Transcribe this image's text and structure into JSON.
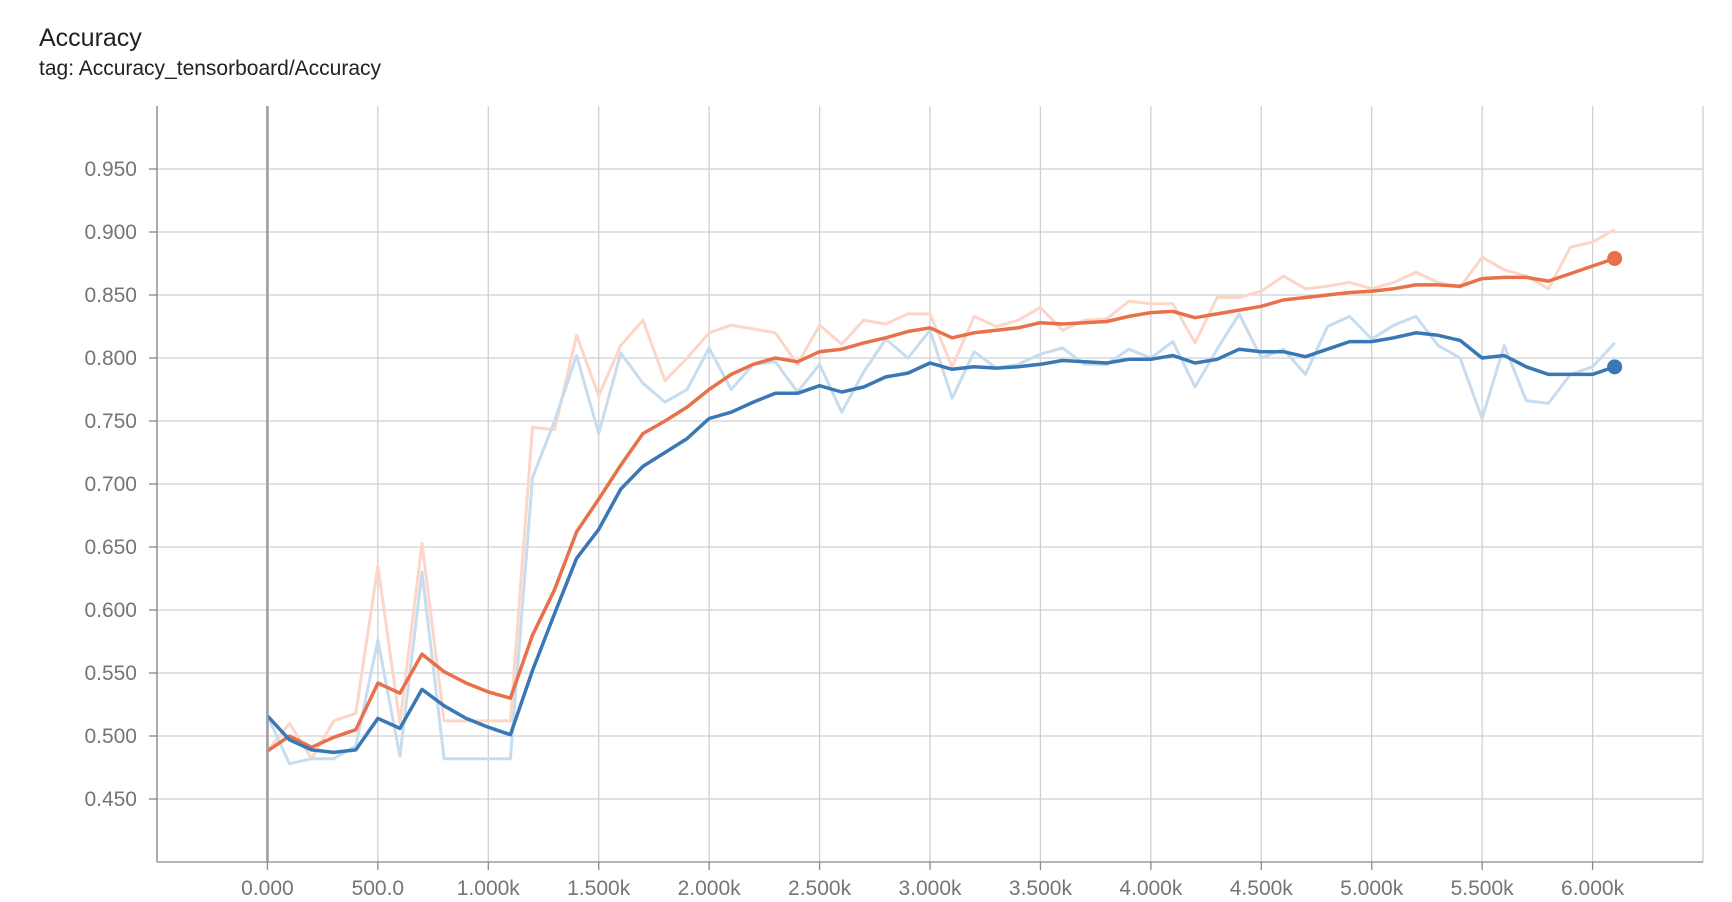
{
  "title": "Accuracy",
  "subtitle": "tag: Accuracy_tensorboard/Accuracy",
  "chart_data": {
    "type": "line",
    "title": "Accuracy",
    "subtitle": "tag: Accuracy_tensorboard/Accuracy",
    "xlabel": "",
    "ylabel": "",
    "xlim": [
      -500,
      6500
    ],
    "ylim": [
      0.4,
      1.0
    ],
    "grid": true,
    "x_ticks": [
      0,
      500,
      1000,
      1500,
      2000,
      2500,
      3000,
      3500,
      4000,
      4500,
      5000,
      5500,
      6000
    ],
    "x_tick_labels": [
      "0.000",
      "500.0",
      "1.000k",
      "1.500k",
      "2.000k",
      "2.500k",
      "3.000k",
      "3.500k",
      "4.000k",
      "4.500k",
      "5.000k",
      "5.500k",
      "6.000k"
    ],
    "y_ticks": [
      0.45,
      0.5,
      0.55,
      0.6,
      0.65,
      0.7,
      0.75,
      0.8,
      0.85,
      0.9,
      0.95
    ],
    "y_tick_labels": [
      "0.450",
      "0.500",
      "0.550",
      "0.600",
      "0.650",
      "0.700",
      "0.750",
      "0.800",
      "0.850",
      "0.900",
      "0.950"
    ],
    "x": [
      0,
      100,
      200,
      300,
      400,
      500,
      600,
      700,
      800,
      900,
      1000,
      1100,
      1200,
      1300,
      1400,
      1500,
      1600,
      1700,
      1800,
      1900,
      2000,
      2100,
      2200,
      2300,
      2400,
      2500,
      2600,
      2700,
      2800,
      2900,
      3000,
      3100,
      3200,
      3300,
      3400,
      3500,
      3600,
      3700,
      3800,
      3900,
      4000,
      4100,
      4200,
      4300,
      4400,
      4500,
      4600,
      4700,
      4800,
      4900,
      5000,
      5100,
      5200,
      5300,
      5400,
      5500,
      5600,
      5700,
      5800,
      5900,
      6000,
      6100
    ],
    "series": [
      {
        "color": "#e8704a",
        "raw_color": "#fcd6c8",
        "smoothed": [
          0.488,
          0.5,
          0.491,
          0.499,
          0.505,
          0.542,
          0.534,
          0.565,
          0.551,
          0.542,
          0.535,
          0.53,
          0.58,
          0.616,
          0.662,
          0.688,
          0.715,
          0.74,
          0.75,
          0.761,
          0.775,
          0.787,
          0.795,
          0.8,
          0.797,
          0.805,
          0.807,
          0.812,
          0.816,
          0.821,
          0.824,
          0.816,
          0.82,
          0.822,
          0.824,
          0.828,
          0.827,
          0.828,
          0.829,
          0.833,
          0.836,
          0.837,
          0.832,
          0.835,
          0.838,
          0.841,
          0.846,
          0.848,
          0.85,
          0.852,
          0.853,
          0.855,
          0.858,
          0.858,
          0.857,
          0.863,
          0.864,
          0.864,
          0.861,
          0.867,
          0.873,
          0.879
        ],
        "raw": [
          0.488,
          0.51,
          0.482,
          0.512,
          0.518,
          0.635,
          0.51,
          0.653,
          0.512,
          0.512,
          0.512,
          0.512,
          0.745,
          0.743,
          0.818,
          0.77,
          0.81,
          0.83,
          0.782,
          0.8,
          0.82,
          0.826,
          0.823,
          0.82,
          0.795,
          0.826,
          0.811,
          0.83,
          0.827,
          0.835,
          0.835,
          0.793,
          0.833,
          0.825,
          0.83,
          0.84,
          0.822,
          0.83,
          0.831,
          0.845,
          0.843,
          0.843,
          0.812,
          0.848,
          0.848,
          0.853,
          0.865,
          0.855,
          0.857,
          0.86,
          0.855,
          0.86,
          0.868,
          0.86,
          0.856,
          0.88,
          0.87,
          0.865,
          0.855,
          0.888,
          0.892,
          0.902
        ],
        "last_point": [
          6100,
          0.879
        ]
      },
      {
        "color": "#3a78b5",
        "raw_color": "#c7ddef",
        "smoothed": [
          0.516,
          0.497,
          0.489,
          0.487,
          0.489,
          0.514,
          0.506,
          0.537,
          0.524,
          0.514,
          0.507,
          0.501,
          0.552,
          0.597,
          0.641,
          0.664,
          0.696,
          0.714,
          0.725,
          0.736,
          0.752,
          0.757,
          0.765,
          0.772,
          0.772,
          0.778,
          0.773,
          0.777,
          0.785,
          0.788,
          0.796,
          0.791,
          0.793,
          0.792,
          0.793,
          0.795,
          0.798,
          0.797,
          0.796,
          0.799,
          0.799,
          0.802,
          0.796,
          0.799,
          0.807,
          0.805,
          0.805,
          0.801,
          0.807,
          0.813,
          0.813,
          0.816,
          0.82,
          0.818,
          0.814,
          0.8,
          0.802,
          0.793,
          0.787,
          0.787,
          0.787,
          0.793
        ],
        "raw": [
          0.516,
          0.478,
          0.482,
          0.482,
          0.492,
          0.576,
          0.484,
          0.63,
          0.482,
          0.482,
          0.482,
          0.482,
          0.705,
          0.75,
          0.802,
          0.74,
          0.804,
          0.78,
          0.765,
          0.775,
          0.808,
          0.775,
          0.795,
          0.797,
          0.773,
          0.795,
          0.757,
          0.789,
          0.815,
          0.8,
          0.822,
          0.768,
          0.805,
          0.792,
          0.795,
          0.803,
          0.808,
          0.795,
          0.795,
          0.807,
          0.8,
          0.813,
          0.777,
          0.807,
          0.835,
          0.8,
          0.807,
          0.787,
          0.825,
          0.833,
          0.815,
          0.826,
          0.833,
          0.81,
          0.8,
          0.752,
          0.81,
          0.766,
          0.764,
          0.787,
          0.793,
          0.812
        ],
        "last_point": [
          6100,
          0.793
        ]
      }
    ]
  }
}
